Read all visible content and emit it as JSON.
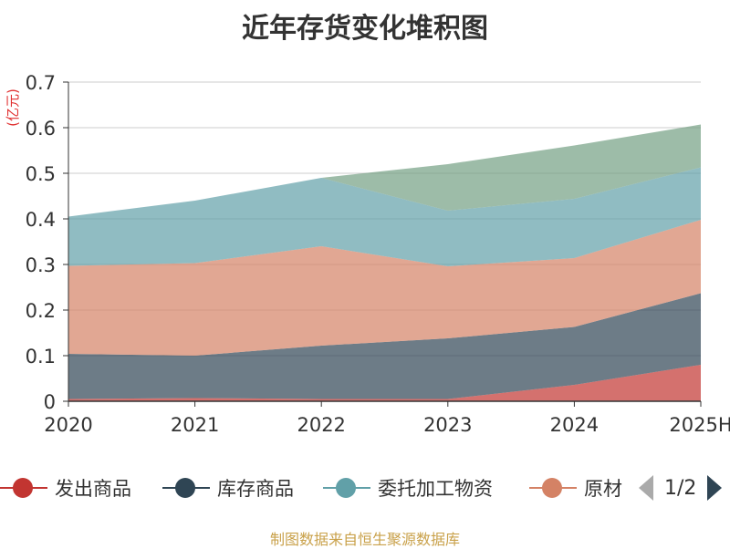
{
  "chart_data": {
    "type": "area",
    "title": "近年存货变化堆积图",
    "unit_label": "(亿元)",
    "categories": [
      "2020",
      "2021",
      "2022",
      "2023",
      "2024",
      "2025H"
    ],
    "ylim": [
      0,
      0.7
    ],
    "y_ticks": [
      "0",
      "0.1",
      "0.2",
      "0.3",
      "0.4",
      "0.5",
      "0.6",
      "0.7"
    ],
    "grid": true,
    "stacked": true,
    "series": [
      {
        "name": "发出商品",
        "color": "#c23531",
        "values": [
          0.005,
          0.007,
          0.005,
          0.005,
          0.036,
          0.08
        ]
      },
      {
        "name": "库存商品",
        "color": "#2f4554",
        "values": [
          0.099,
          0.093,
          0.117,
          0.133,
          0.127,
          0.157
        ]
      },
      {
        "name": "原材料",
        "color": "#d48265",
        "values": [
          0.193,
          0.203,
          0.218,
          0.158,
          0.151,
          0.161
        ]
      },
      {
        "name": "委托加工物资",
        "color": "#61a0a8",
        "values": [
          0.108,
          0.137,
          0.15,
          0.122,
          0.13,
          0.115
        ]
      },
      {
        "name": "",
        "color": "#749f83",
        "values": [
          0,
          0,
          0,
          0.102,
          0.117,
          0.094
        ]
      }
    ]
  },
  "legend": {
    "items": [
      {
        "label": "发出商品",
        "color": "#c23531"
      },
      {
        "label": "库存商品",
        "color": "#2f4554"
      },
      {
        "label": "委托加工物资",
        "color": "#61a0a8"
      },
      {
        "label": "原材",
        "color": "#d48265"
      }
    ],
    "page_text": "1/2"
  },
  "source_text": "制图数据来自恒生聚源数据库"
}
